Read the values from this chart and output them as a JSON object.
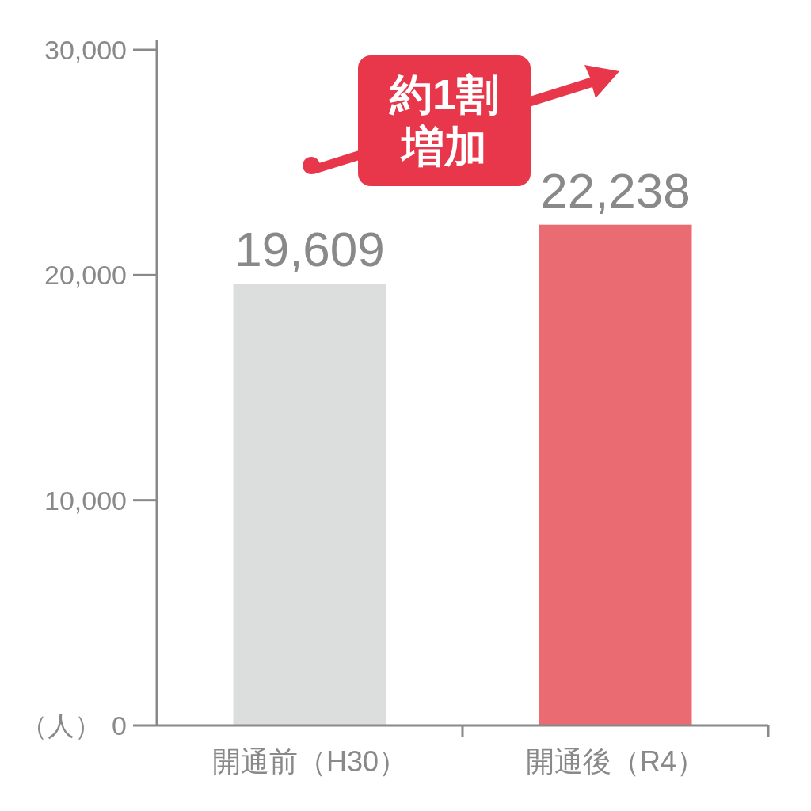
{
  "chart_data": {
    "type": "bar",
    "categories": [
      "開通前（H30）",
      "開通後（R4）"
    ],
    "values": [
      19609,
      22238
    ],
    "colors": [
      "#dcdddd",
      "#eb6b72"
    ],
    "value_labels": [
      "19,609",
      "22,238"
    ],
    "ylim": [
      0,
      30000
    ],
    "yticks": [
      {
        "value": 0,
        "label": "0"
      },
      {
        "value": 10000,
        "label": "10,000"
      },
      {
        "value": 20000,
        "label": "20,000"
      },
      {
        "value": 30000,
        "label": "30,000"
      }
    ],
    "ylabel": "（人）",
    "annotations": [
      "約1割増加"
    ]
  }
}
